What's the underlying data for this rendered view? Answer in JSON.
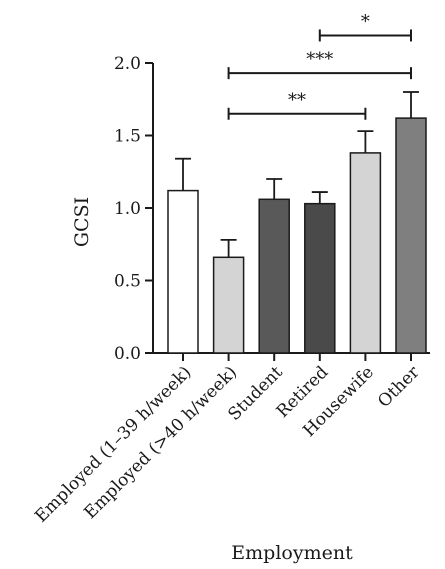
{
  "chart_data": {
    "type": "bar",
    "title": "",
    "xlabel": "Employment",
    "ylabel": "GCSI",
    "ylim": [
      0,
      2.0
    ],
    "yticks": [
      0.0,
      0.5,
      1.0,
      1.5,
      2.0
    ],
    "ytick_labels": [
      "0.0",
      "0.5",
      "1.0",
      "1.5",
      "2.0"
    ],
    "grid": false,
    "categories": [
      "Employed (1–39 h/week)",
      "Employed (>40 h/week)",
      "Student",
      "Retired",
      "Housewife",
      "Other"
    ],
    "values": [
      1.12,
      0.66,
      1.06,
      1.03,
      1.38,
      1.62
    ],
    "errors": [
      0.22,
      0.12,
      0.14,
      0.08,
      0.15,
      0.18
    ],
    "bar_colors": [
      "#ffffff",
      "#d4d4d4",
      "#595959",
      "#4a4a4a",
      "#d4d4d4",
      "#7f7f7f"
    ],
    "significance": [
      {
        "from": 1,
        "to": 4,
        "label": "**",
        "level": 1.65
      },
      {
        "from": 1,
        "to": 5,
        "label": "***",
        "level": 1.93
      },
      {
        "from": 3,
        "to": 5,
        "label": "*",
        "level": 2.19
      }
    ]
  }
}
